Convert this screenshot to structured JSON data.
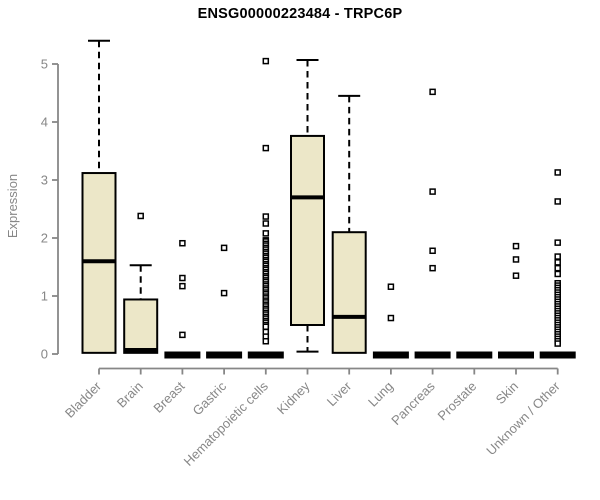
{
  "title": "ENSG00000223484 - TRPC6P",
  "colors": {
    "box_fill": "#ECE7C8",
    "box_border": "#000000",
    "median": "#000000",
    "whisker": "#000000",
    "outlier_stroke": "#000000",
    "outlier_fill": "#ffffff",
    "axis": "#878787",
    "label": "#878787",
    "title": "#000000",
    "background": "#ffffff"
  },
  "chart_data": {
    "type": "boxplot",
    "title": "ENSG00000223484 - TRPC6P",
    "xlabel": "",
    "ylabel": "Expression",
    "ylim": [
      0,
      5
    ],
    "yticks": [
      0,
      1,
      2,
      3,
      4,
      5
    ],
    "grid": false,
    "legend": "none",
    "categories": [
      "Bladder",
      "Brain",
      "Breast",
      "Gastric",
      "Hematopoietic cells",
      "Kidney",
      "Liver",
      "Lung",
      "Pancreas",
      "Prostate",
      "Skin",
      "Unknown / Other"
    ],
    "boxes": [
      {
        "category": "Bladder",
        "q1": 0.02,
        "median": 1.6,
        "q3": 3.12,
        "whisker_low": 0.02,
        "whisker_high": 5.4,
        "outliers": []
      },
      {
        "category": "Brain",
        "q1": 0.02,
        "median": 0.07,
        "q3": 0.94,
        "whisker_low": 0.02,
        "whisker_high": 1.53,
        "outliers": [
          2.38
        ]
      },
      {
        "category": "Breast",
        "q1": 0,
        "median": 0,
        "q3": 0,
        "whisker_low": 0,
        "whisker_high": 0,
        "outliers": [
          1.91,
          1.31,
          1.17,
          0.33
        ]
      },
      {
        "category": "Gastric",
        "q1": 0,
        "median": 0,
        "q3": 0,
        "whisker_low": 0,
        "whisker_high": 0,
        "outliers": [
          1.83,
          1.05
        ]
      },
      {
        "category": "Hematopoietic cells",
        "q1": 0,
        "median": 0,
        "q3": 0,
        "whisker_low": 0,
        "whisker_high": 0,
        "outliers": [
          5.05,
          3.55,
          2.37,
          2.25,
          2.08,
          1.96,
          1.94,
          1.9,
          1.87,
          1.83,
          1.8,
          1.76,
          1.73,
          1.69,
          1.66,
          1.62,
          1.59,
          1.55,
          1.52,
          1.48,
          1.45,
          1.41,
          1.38,
          1.34,
          1.31,
          1.27,
          1.24,
          1.2,
          1.17,
          1.13,
          1.1,
          1.06,
          1.03,
          0.99,
          0.96,
          0.92,
          0.89,
          0.85,
          0.82,
          0.78,
          0.75,
          0.71,
          0.68,
          0.64,
          0.61,
          0.57,
          0.54,
          0.5,
          0.47,
          0.38,
          0.3,
          0.22
        ]
      },
      {
        "category": "Kidney",
        "q1": 0.5,
        "median": 2.7,
        "q3": 3.76,
        "whisker_low": 0.04,
        "whisker_high": 5.07,
        "outliers": []
      },
      {
        "category": "Liver",
        "q1": 0.02,
        "median": 0.64,
        "q3": 2.1,
        "whisker_low": 0.02,
        "whisker_high": 4.45,
        "outliers": []
      },
      {
        "category": "Lung",
        "q1": 0,
        "median": 0,
        "q3": 0,
        "whisker_low": 0,
        "whisker_high": 0,
        "outliers": [
          1.16,
          0.62
        ]
      },
      {
        "category": "Pancreas",
        "q1": 0,
        "median": 0,
        "q3": 0,
        "whisker_low": 0,
        "whisker_high": 0,
        "outliers": [
          4.52,
          2.8,
          1.78,
          1.48
        ]
      },
      {
        "category": "Prostate",
        "q1": 0,
        "median": 0,
        "q3": 0,
        "whisker_low": 0,
        "whisker_high": 0,
        "outliers": []
      },
      {
        "category": "Skin",
        "q1": 0,
        "median": 0,
        "q3": 0,
        "whisker_low": 0,
        "whisker_high": 0,
        "outliers": [
          1.86,
          1.63,
          1.35
        ]
      },
      {
        "category": "Unknown / Other",
        "q1": 0,
        "median": 0,
        "q3": 0,
        "whisker_low": 0,
        "whisker_high": 0,
        "outliers": [
          3.13,
          2.63,
          1.92,
          1.68,
          1.58,
          1.48,
          1.38,
          1.22,
          1.18,
          1.14,
          1.1,
          1.06,
          1.02,
          0.98,
          0.94,
          0.9,
          0.86,
          0.82,
          0.78,
          0.74,
          0.7,
          0.66,
          0.62,
          0.58,
          0.54,
          0.5,
          0.46,
          0.42,
          0.38,
          0.34,
          0.3,
          0.26,
          0.22,
          0.18
        ]
      }
    ]
  }
}
